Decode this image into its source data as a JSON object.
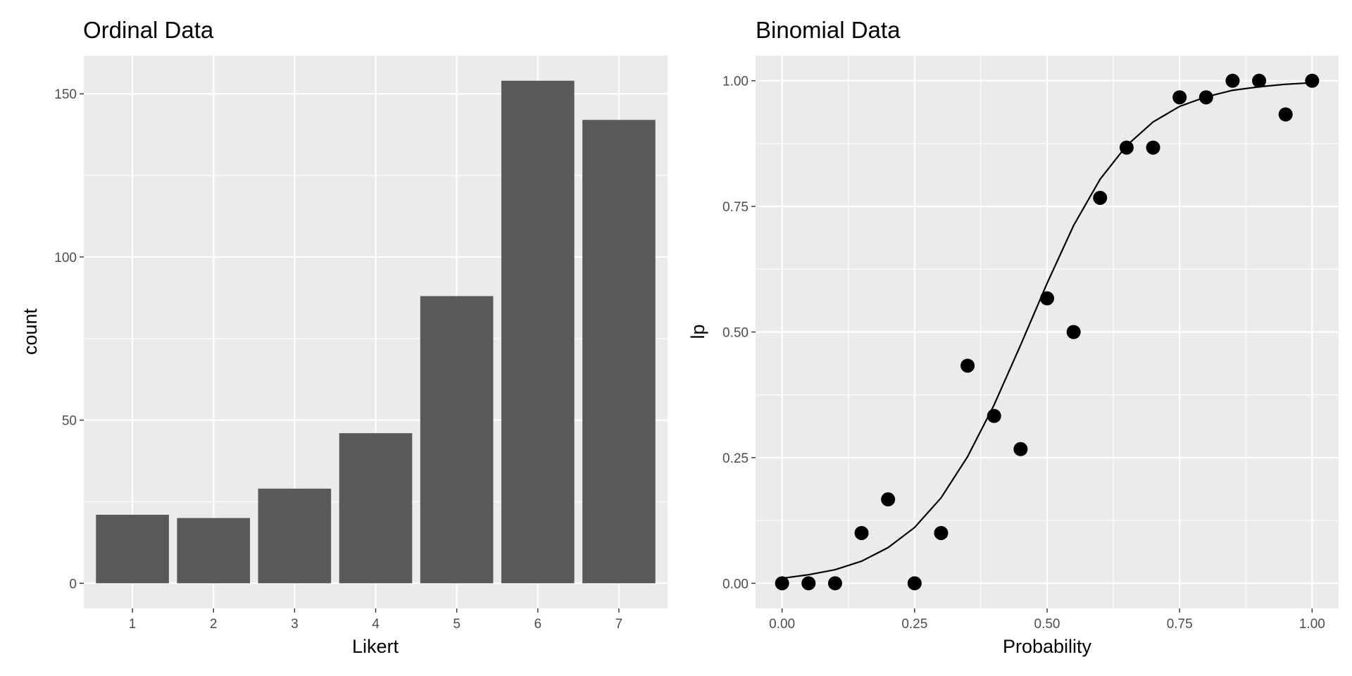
{
  "chart_data": [
    {
      "type": "bar",
      "title": "Ordinal Data",
      "xlabel": "Likert",
      "ylabel": "count",
      "categories": [
        "1",
        "2",
        "3",
        "4",
        "5",
        "6",
        "7"
      ],
      "values": [
        21,
        20,
        29,
        46,
        88,
        154,
        142
      ],
      "ylim": [
        -7.7,
        161.7
      ],
      "yticks": [
        0,
        50,
        100,
        150
      ],
      "ytick_labels": [
        "0",
        "50",
        "100",
        "150"
      ],
      "grid": true,
      "bar_color": "#595959",
      "panel_color": "#ebebeb"
    },
    {
      "type": "scatter",
      "title": "Binomial Data",
      "xlabel": "Probability",
      "ylabel": "lp",
      "x": [
        0.0,
        0.05,
        0.1,
        0.15,
        0.2,
        0.25,
        0.3,
        0.35,
        0.4,
        0.45,
        0.5,
        0.55,
        0.6,
        0.65,
        0.7,
        0.75,
        0.8,
        0.85,
        0.9,
        0.95,
        1.0
      ],
      "y": [
        0.0,
        0.0,
        0.0,
        0.1,
        0.167,
        0.0,
        0.1,
        0.433,
        0.333,
        0.267,
        0.567,
        0.5,
        0.767,
        0.867,
        0.867,
        0.967,
        0.967,
        1.0,
        1.0,
        0.933,
        1.0
      ],
      "fit_line": {
        "x": [
          0.0,
          0.05,
          0.1,
          0.15,
          0.2,
          0.25,
          0.3,
          0.35,
          0.4,
          0.45,
          0.5,
          0.55,
          0.6,
          0.65,
          0.7,
          0.75,
          0.8,
          0.85,
          0.9,
          0.95,
          1.0
        ],
        "y": [
          0.01,
          0.017,
          0.027,
          0.044,
          0.071,
          0.111,
          0.17,
          0.252,
          0.355,
          0.474,
          0.597,
          0.712,
          0.804,
          0.871,
          0.918,
          0.949,
          0.968,
          0.981,
          0.988,
          0.993,
          0.996
        ]
      },
      "xlim": [
        -0.05,
        1.05
      ],
      "ylim": [
        -0.05,
        1.05
      ],
      "xticks": [
        0.0,
        0.25,
        0.5,
        0.75,
        1.0
      ],
      "xtick_labels": [
        "0.00",
        "0.25",
        "0.50",
        "0.75",
        "1.00"
      ],
      "yticks": [
        0.0,
        0.25,
        0.5,
        0.75,
        1.0
      ],
      "ytick_labels": [
        "0.00",
        "0.25",
        "0.50",
        "0.75",
        "1.00"
      ],
      "grid": true,
      "point_color": "#000000",
      "line_color": "#000000",
      "panel_color": "#ebebeb"
    }
  ]
}
